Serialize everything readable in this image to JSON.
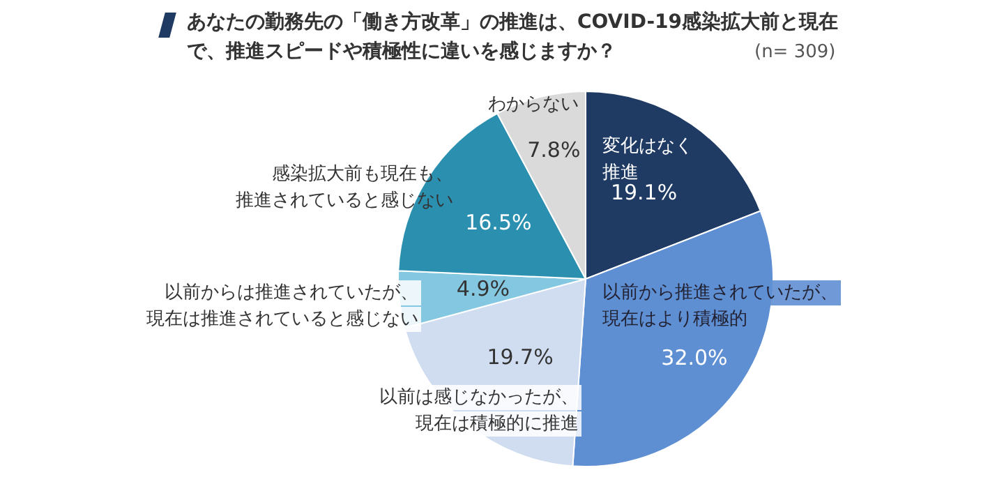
{
  "chart_data": {
    "type": "pie",
    "title": "あなたの勤務先の「働き方改革」の推進は、COVID-19感染拡大前と現在で、推進スピードや積極性に違いを感じますか？",
    "categories": [
      "変化はなく推進",
      "以前から推進されていたが、現在はより積極的",
      "以前は感じなかったが、現在は積極的に推進",
      "以前からは推進されていたが、現在は推進されていると感じない",
      "感染拡大前も現在も、推進されていると感じない",
      "わからない"
    ],
    "values": [
      19.1,
      32.0,
      19.7,
      4.9,
      16.5,
      7.8
    ],
    "colors": [
      "#1f3b63",
      "#5f8fd3",
      "#d0dcf0",
      "#84c7e0",
      "#2b8fb0",
      "#dadada"
    ],
    "annotations": [
      "(n= 309)"
    ],
    "value_labels": [
      "19.1%",
      "32.0%",
      "19.7%",
      "4.9%",
      "16.5%",
      "7.8%"
    ],
    "legend": false
  }
}
